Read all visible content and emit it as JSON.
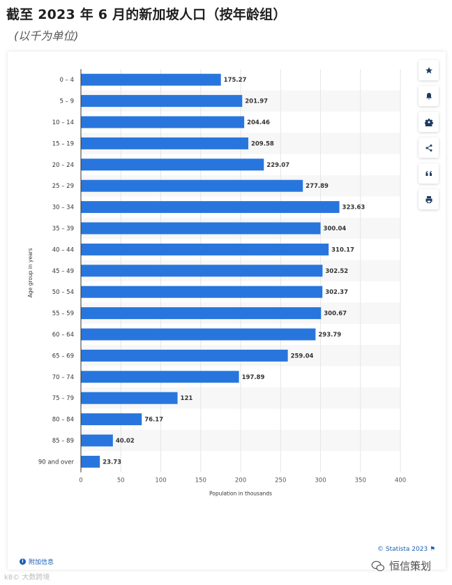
{
  "header": {
    "title": "截至 2023 年 6 月的新加坡人口（按年龄组）",
    "subtitle": "(以千为单位)"
  },
  "chart_data": {
    "type": "bar",
    "orientation": "horizontal",
    "categories": [
      "0 – 4",
      "5 – 9",
      "10 – 14",
      "15 – 19",
      "20 – 24",
      "25 – 29",
      "30 – 34",
      "35 – 39",
      "40 – 44",
      "45 – 49",
      "50 – 54",
      "55 – 59",
      "60 – 64",
      "65 – 69",
      "70 – 74",
      "75 – 79",
      "80 – 84",
      "85 – 89",
      "90 and over"
    ],
    "values": [
      175.27,
      201.97,
      204.46,
      209.58,
      229.07,
      277.89,
      323.63,
      300.04,
      310.17,
      302.52,
      302.37,
      300.67,
      293.79,
      259.04,
      197.89,
      121,
      76.17,
      40.02,
      23.73
    ],
    "xlabel": "Population in thousands",
    "ylabel": "Age group in years",
    "xlim": [
      0,
      400
    ],
    "xticks": [
      0,
      50,
      100,
      150,
      200,
      250,
      300,
      350,
      400
    ],
    "grid": "vertical",
    "bar_color": "#2876dd"
  },
  "toolbar": {
    "buttons": [
      {
        "name": "favorite-button",
        "icon": "star-icon",
        "glyph": "★"
      },
      {
        "name": "notification-button",
        "icon": "bell-icon",
        "glyph": "bell"
      },
      {
        "name": "settings-button",
        "icon": "gear-icon",
        "glyph": "gear"
      },
      {
        "name": "share-button",
        "icon": "share-icon",
        "glyph": "share"
      },
      {
        "name": "cite-button",
        "icon": "quote-icon",
        "glyph": "“"
      },
      {
        "name": "print-button",
        "icon": "print-icon",
        "glyph": "print"
      }
    ]
  },
  "footer": {
    "copyright": "© Statista 2023",
    "additional_info": "附加信息",
    "watermark_left": "k8© 大数跨境",
    "watermark_right": "恒信策划"
  }
}
